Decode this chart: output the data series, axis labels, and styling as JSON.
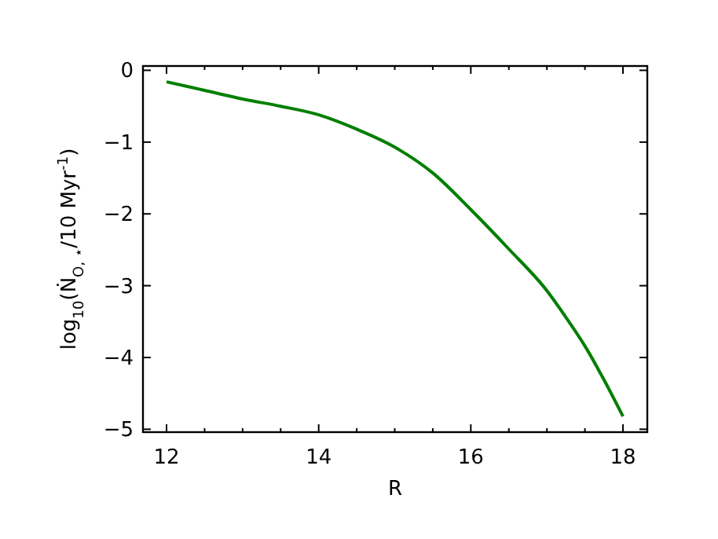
{
  "chart_data": {
    "type": "line",
    "xlabel": "R",
    "ylabel": "log$_{10}$(Ṅ$_{O, ⋆}$/10 Myr$^{-1}$)",
    "xlim": [
      11.69,
      18.32
    ],
    "ylim": [
      -5.04,
      0.06
    ],
    "xticks": [
      12,
      {
        "value": 12.5,
        "label": null
      },
      {
        "value": 13,
        "label": null
      },
      {
        "value": 13.5,
        "label": null
      },
      14,
      {
        "value": 14.5,
        "label": null
      },
      {
        "value": 15,
        "label": null
      },
      {
        "value": 15.5,
        "label": null
      },
      16,
      {
        "value": 16.5,
        "label": null
      },
      {
        "value": 17,
        "label": null
      },
      {
        "value": 17.5,
        "label": null
      },
      18
    ],
    "yticks": [
      {
        "value": -5,
        "label": "−5"
      },
      {
        "value": -4,
        "label": "−4"
      },
      {
        "value": -3,
        "label": "−3"
      },
      {
        "value": -2,
        "label": "−2"
      },
      {
        "value": -1,
        "label": "−1"
      },
      0
    ],
    "grid": false,
    "series": [
      {
        "color": "#007f00",
        "x": [
          12,
          12.5,
          13,
          13.5,
          14,
          14.5,
          15,
          15.5,
          16,
          16.5,
          17,
          17.25,
          17.5,
          17.75,
          18
        ],
        "values": [
          -0.16,
          -0.28,
          -0.4,
          -0.5,
          -0.62,
          -0.82,
          -1.07,
          -1.43,
          -1.94,
          -2.49,
          -3.07,
          -3.44,
          -3.84,
          -4.31,
          -4.82
        ]
      }
    ]
  }
}
